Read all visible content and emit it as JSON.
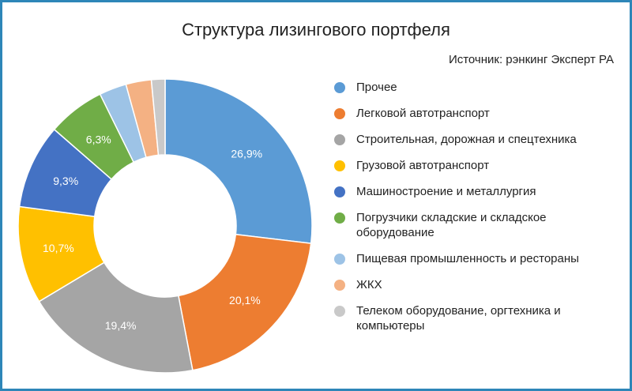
{
  "title": "Структура лизингового портфеля",
  "source": "Источник: рэнкинг Эксперт РА",
  "colors": {
    "border": "#2e86b8",
    "label_text": "#ffffff"
  },
  "chart_data": {
    "type": "pie",
    "donut": true,
    "title": "Структура лизингового портфеля",
    "legend_position": "right",
    "slices": [
      {
        "name": "Прочее",
        "value": 26.9,
        "label": "26,9%",
        "color": "#5b9bd5"
      },
      {
        "name": "Легковой автотранспорт",
        "value": 20.1,
        "label": "20,1%",
        "color": "#ed7d31"
      },
      {
        "name": "Строительная, дорожная и спецтехника",
        "value": 19.4,
        "label": "19,4%",
        "color": "#a5a5a5"
      },
      {
        "name": "Грузовой автотранспорт",
        "value": 10.7,
        "label": "10,7%",
        "color": "#ffc000"
      },
      {
        "name": "Машиностроение и металлургия",
        "value": 9.3,
        "label": "9,3%",
        "color": "#4472c4"
      },
      {
        "name": "Погрузчики складские и складское оборудование",
        "value": 6.3,
        "label": "6,3%",
        "color": "#70ad47"
      },
      {
        "name": "Пищевая промышленность и рестораны",
        "value": 3.0,
        "label": "",
        "color": "#9dc3e6"
      },
      {
        "name": "ЖКХ",
        "value": 2.8,
        "label": "",
        "color": "#f4b183"
      },
      {
        "name": "Телеком оборудование, оргтехника и компьютеры",
        "value": 1.5,
        "label": "",
        "color": "#c9c9c9"
      }
    ]
  }
}
